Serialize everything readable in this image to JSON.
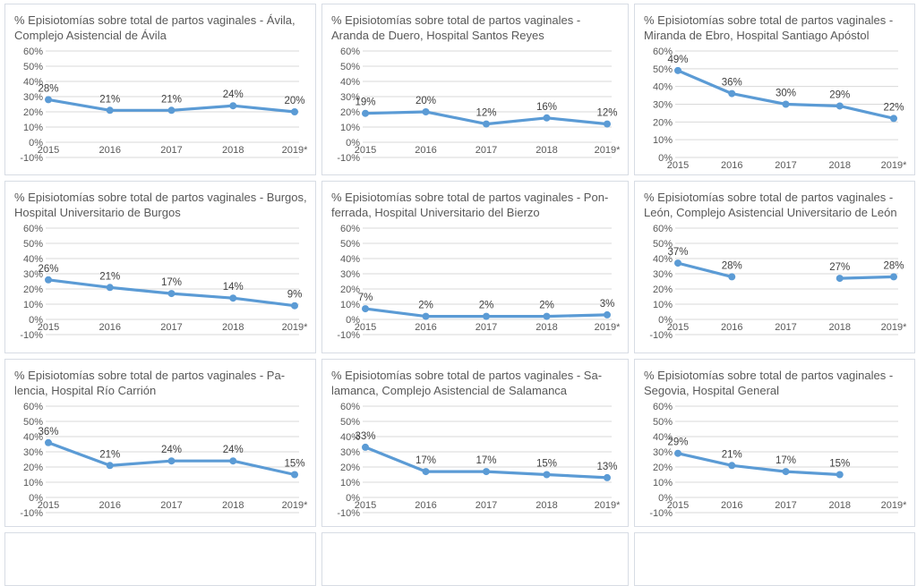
{
  "colors": {
    "line": "#5b9bd5",
    "grid": "#d9d9d9",
    "axis_text": "#595959",
    "label_text": "#404040",
    "card_border": "#d7dce4"
  },
  "chart_data": [
    {
      "type": "line",
      "title": "% Episiotomías sobre total de partos vaginales - Ávila, Complejo Asistencial de Ávila",
      "title_line1": "% Episiotomías sobre total de partos vaginales - Ávila,",
      "title_line2": "Complejo Asistencial de Ávila",
      "categories": [
        "2015",
        "2016",
        "2017",
        "2018",
        "2019*"
      ],
      "values": [
        28,
        21,
        21,
        24,
        20
      ],
      "ylim": [
        -10,
        60
      ],
      "xlabel": "",
      "ylabel": ""
    },
    {
      "type": "line",
      "title": "% Episiotomías sobre total de partos vaginales - Aranda de Duero, Hospital Santos Reyes",
      "title_line1": "% Episiotomías sobre total de partos vaginales -",
      "title_line2": "Aranda de Duero, Hospital Santos Reyes",
      "categories": [
        "2015",
        "2016",
        "2017",
        "2018",
        "2019*"
      ],
      "values": [
        19,
        20,
        12,
        16,
        12
      ],
      "ylim": [
        -10,
        60
      ],
      "xlabel": "",
      "ylabel": ""
    },
    {
      "type": "line",
      "title": "% Episiotomías sobre total de partos vaginales - Miranda de Ebro, Hospital Santiago Apóstol",
      "title_line1": "% Episiotomías sobre total de partos vaginales -",
      "title_line2": "Miranda de Ebro, Hospital Santiago Apóstol",
      "categories": [
        "2015",
        "2016",
        "2017",
        "2018",
        "2019*"
      ],
      "values": [
        49,
        36,
        30,
        29,
        22
      ],
      "ylim": [
        0,
        60
      ],
      "xlabel": "",
      "ylabel": ""
    },
    {
      "type": "line",
      "title": "% Episiotomías sobre total de partos vaginales - Burgos, Hospital Universitario de Burgos",
      "title_line1": "% Episiotomías sobre total de partos vaginales - Burgos,",
      "title_line2": "Hospital Universitario de Burgos",
      "categories": [
        "2015",
        "2016",
        "2017",
        "2018",
        "2019*"
      ],
      "values": [
        26,
        21,
        17,
        14,
        9
      ],
      "ylim": [
        -10,
        60
      ],
      "xlabel": "",
      "ylabel": ""
    },
    {
      "type": "line",
      "title": "% Episiotomías sobre total de partos vaginales - Ponferrada, Hospital Universitario del Bierzo",
      "title_line1": "% Episiotomías sobre total de partos vaginales - Pon-",
      "title_line2": "ferrada, Hospital Universitario del Bierzo",
      "categories": [
        "2015",
        "2016",
        "2017",
        "2018",
        "2019*"
      ],
      "values": [
        7,
        2,
        2,
        2,
        3
      ],
      "ylim": [
        -10,
        60
      ],
      "xlabel": "",
      "ylabel": ""
    },
    {
      "type": "line",
      "title": "% Episiotomías sobre total de partos vaginales - León, Complejo Asistencial Universitario de León",
      "title_line1": "% Episiotomías sobre total de partos vaginales -",
      "title_line2": "León, Complejo Asistencial Universitario de León",
      "categories": [
        "2015",
        "2016",
        "2017",
        "2018",
        "2019*"
      ],
      "values": [
        37,
        28,
        null,
        27,
        28
      ],
      "ylim": [
        -10,
        60
      ],
      "xlabel": "",
      "ylabel": ""
    },
    {
      "type": "line",
      "title": "% Episiotomías sobre total de partos vaginales - Palencia, Hospital Río Carrión",
      "title_line1": "% Episiotomías sobre total de partos vaginales - Pa-",
      "title_line2": "lencia, Hospital Río Carrión",
      "categories": [
        "2015",
        "2016",
        "2017",
        "2018",
        "2019*"
      ],
      "values": [
        36,
        21,
        24,
        24,
        15
      ],
      "ylim": [
        -10,
        60
      ],
      "xlabel": "",
      "ylabel": ""
    },
    {
      "type": "line",
      "title": "% Episiotomías sobre total de partos vaginales - Salamanca, Complejo Asistencial de Salamanca",
      "title_line1": "% Episiotomías sobre total de partos vaginales - Sa-",
      "title_line2": "lamanca, Complejo Asistencial de Salamanca",
      "categories": [
        "2015",
        "2016",
        "2017",
        "2018",
        "2019*"
      ],
      "values": [
        33,
        17,
        17,
        15,
        13
      ],
      "ylim": [
        -10,
        60
      ],
      "xlabel": "",
      "ylabel": ""
    },
    {
      "type": "line",
      "title": "% Episiotomías sobre total de partos vaginales - Segovia, Hospital General",
      "title_line1": "% Episiotomías sobre total de partos vaginales -",
      "title_line2": "Segovia, Hospital General",
      "categories": [
        "2015",
        "2016",
        "2017",
        "2018",
        "2019*"
      ],
      "values": [
        29,
        21,
        17,
        15,
        null
      ],
      "ylim": [
        -10,
        60
      ],
      "xlabel": "",
      "ylabel": ""
    }
  ]
}
